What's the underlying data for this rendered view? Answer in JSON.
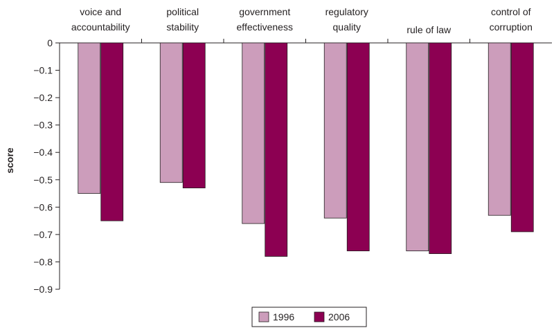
{
  "chart_data": {
    "type": "bar",
    "orientation": "vertical",
    "categories": [
      [
        "voice and",
        "accountability"
      ],
      [
        "political",
        "stability"
      ],
      [
        "government",
        "effectiveness"
      ],
      [
        "regulatory",
        "quality"
      ],
      [
        "rule of law"
      ],
      [
        "control of",
        "corruption"
      ]
    ],
    "series": [
      {
        "name": "1996",
        "color": "#cc9dbb",
        "values": [
          -0.55,
          -0.51,
          -0.66,
          -0.64,
          -0.76,
          -0.63
        ]
      },
      {
        "name": "2006",
        "color": "#8c0052",
        "values": [
          -0.65,
          -0.53,
          -0.78,
          -0.76,
          -0.77,
          -0.69
        ]
      }
    ],
    "ylabel": "score",
    "ylim": [
      -0.9,
      0
    ],
    "yticks": [
      0,
      -0.1,
      -0.2,
      -0.3,
      -0.4,
      -0.5,
      -0.6,
      -0.7,
      -0.8,
      -0.9
    ],
    "ytick_labels": [
      "0",
      "−0.1",
      "−0.2",
      "−0.3",
      "−0.4",
      "−0.5",
      "−0.6",
      "−0.7",
      "−0.8",
      "−0.9"
    ],
    "category_labels_position": "top",
    "grid": false,
    "legend": "bottom-center"
  }
}
